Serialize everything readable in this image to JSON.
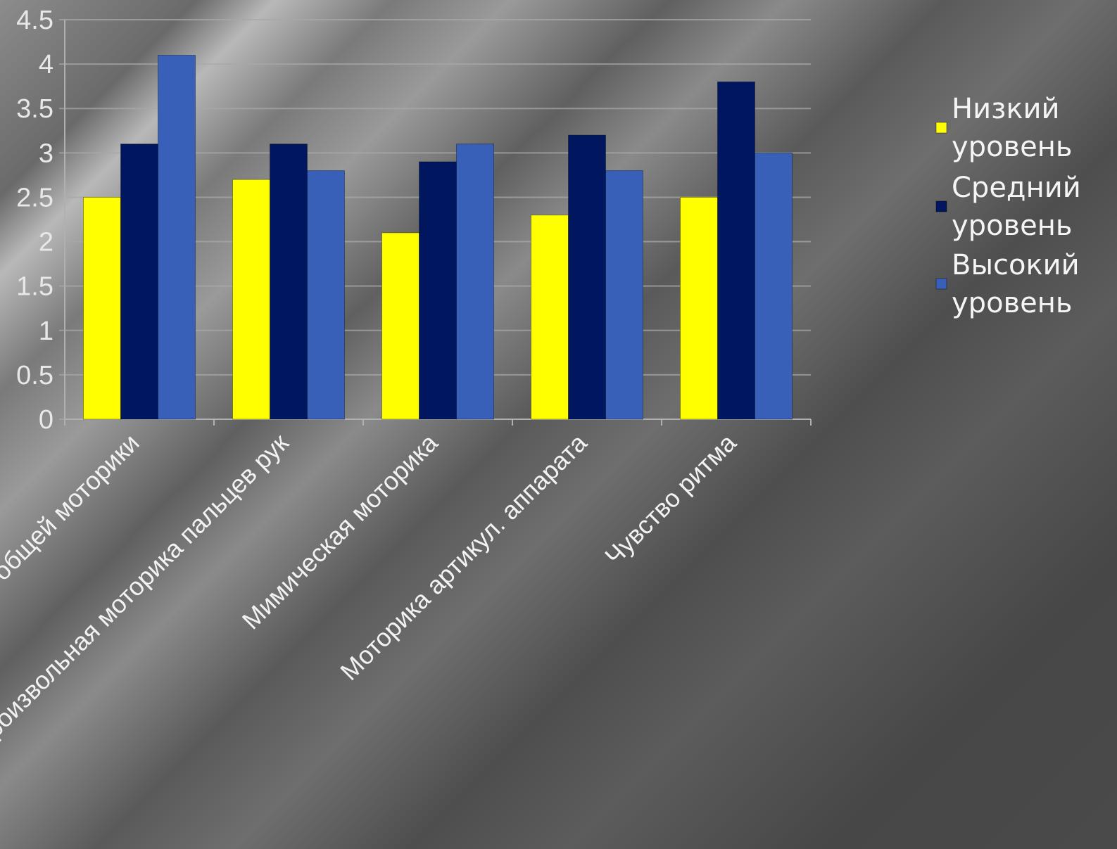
{
  "chart_data": {
    "type": "bar",
    "categories": [
      "Состояние общей моторики",
      "Мелкая произвольная моторика пальцев рук",
      "Мимическая моторика",
      "Моторика артикул. аппарата",
      "Чувство ритма"
    ],
    "series": [
      {
        "name": "Низкий уровень",
        "values": [
          2.5,
          2.7,
          2.1,
          2.3,
          2.5
        ],
        "color": "#ffff00"
      },
      {
        "name": "Средний уровень",
        "values": [
          3.1,
          3.1,
          2.9,
          3.2,
          3.8
        ],
        "color": "#00175f"
      },
      {
        "name": "Высокий уровень",
        "values": [
          4.1,
          2.8,
          3.1,
          2.8,
          3.0
        ],
        "color": "#3860b8"
      }
    ],
    "legend_lines": [
      [
        "Низкий",
        "уровень"
      ],
      [
        "Средний",
        "уровень"
      ],
      [
        "Высокий",
        "уровень"
      ]
    ],
    "y_ticks": [
      "0",
      "0.5",
      "1",
      "1.5",
      "2",
      "2.5",
      "3",
      "3.5",
      "4",
      "4.5"
    ],
    "ylim": [
      0,
      4.5
    ],
    "grid": true,
    "legend_position": "right",
    "title": "",
    "xlabel": "",
    "ylabel": ""
  }
}
